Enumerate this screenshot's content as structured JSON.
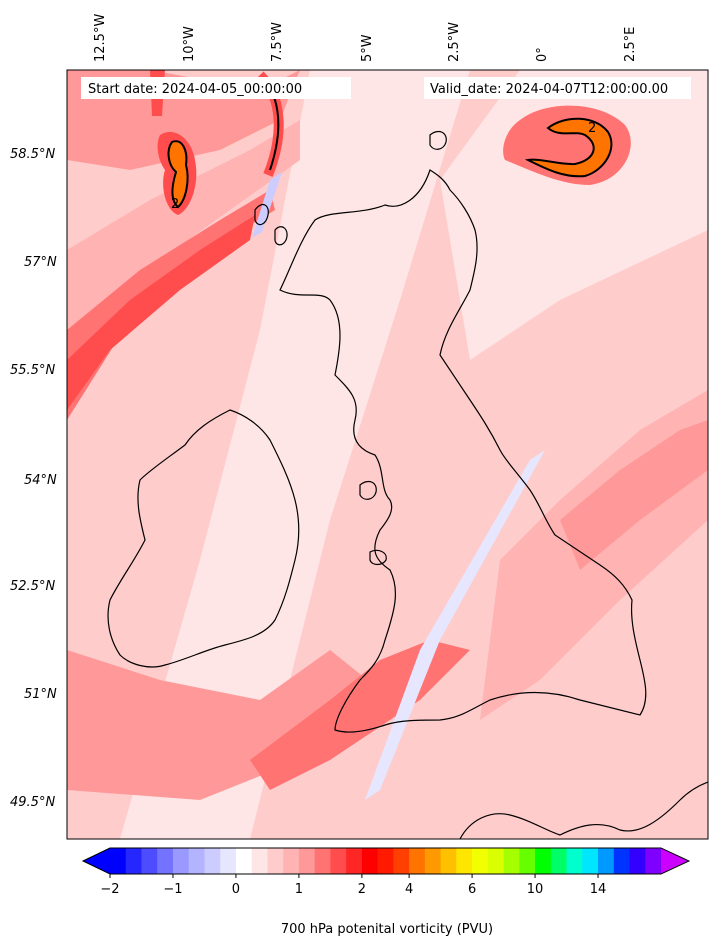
{
  "header": {
    "start_date": "Start date: 2024-04-05_00:00:00",
    "valid_date": "Valid_date: 2024-04-07T12:00:00.00"
  },
  "map": {
    "lon_labels": [
      "12.5°W",
      "10°W",
      "7.5°W",
      "5°W",
      "2.5°W",
      "0°",
      "2.5°E"
    ],
    "lat_labels": [
      "58.5°N",
      "57°N",
      "55.5°N",
      "54°N",
      "52.5°N",
      "51°N",
      "49.5°N"
    ],
    "contour_label": "2"
  },
  "colorbar": {
    "label": "700 hPa potenital vorticity (PVU)",
    "tick_labels": [
      "−2",
      "−1",
      "0",
      "1",
      "2",
      "4",
      "6",
      "10",
      "14"
    ],
    "colors": [
      "#0000ff",
      "#2626ff",
      "#4d4dff",
      "#7373ff",
      "#9999ff",
      "#b3b3ff",
      "#ccccff",
      "#e6e6ff",
      "#ffffff",
      "#ffe6e6",
      "#ffcccc",
      "#ffb3b3",
      "#ff9999",
      "#ff7373",
      "#ff4d4d",
      "#ff2626",
      "#ff0000",
      "#ff1a00",
      "#ff4000",
      "#ff7300",
      "#ff9900",
      "#ffc000",
      "#ffe600",
      "#f2ff00",
      "#d9ff00",
      "#a6ff00",
      "#66ff00",
      "#00ff00",
      "#00ff66",
      "#00ffcc",
      "#00e6ff",
      "#0099ff",
      "#0033ff",
      "#3300ff",
      "#8000ff"
    ],
    "extend_low_color": "#0000ff",
    "extend_high_color": "#cc00ff"
  }
}
